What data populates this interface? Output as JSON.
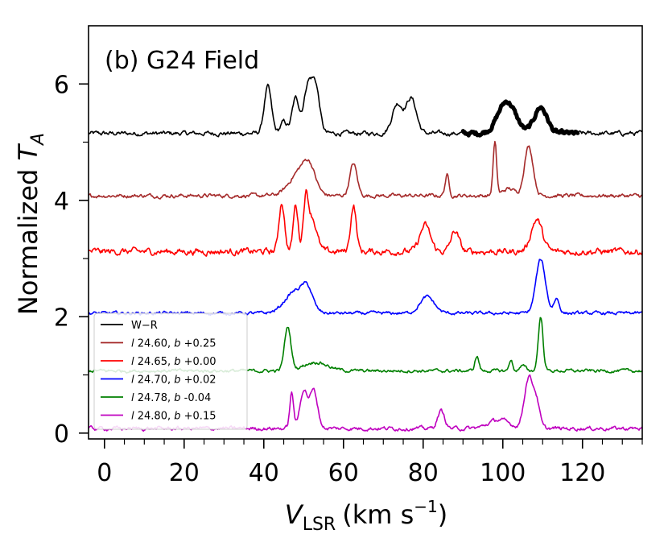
{
  "chart_data": {
    "type": "line",
    "title": "(b) G24 Field",
    "xlabel": {
      "main": "V",
      "sub": "LSR",
      "unit": "(km s",
      "exp": "−1",
      "close": ")"
    },
    "ylabel": {
      "main": "Normalized ",
      "sym": "T",
      "sub": "A"
    },
    "xlim": [
      -4,
      135
    ],
    "ylim": [
      -0.1,
      7.0
    ],
    "xticks": [
      0,
      20,
      40,
      60,
      80,
      100,
      120
    ],
    "xtick_labels": [
      "0",
      "20",
      "40",
      "60",
      "80",
      "100",
      "120"
    ],
    "yticks": [
      0,
      2,
      4,
      6
    ],
    "ytick_labels": [
      "0",
      "2",
      "4",
      "6"
    ],
    "legend_position": "lower-left",
    "series": [
      {
        "name": "W−R",
        "legend_label": {
          "l": "",
          "lv": "W−R",
          "b": "",
          "bv": ""
        },
        "color": "#000000",
        "baseline": 5.15,
        "peaks": [
          [
            41,
            0.8,
            0.9
          ],
          [
            45,
            0.2,
            0.8
          ],
          [
            48,
            0.6,
            0.9
          ],
          [
            51,
            0.78,
            1.0
          ],
          [
            53,
            0.8,
            1.0
          ],
          [
            73.5,
            0.5,
            1.3
          ],
          [
            77,
            0.6,
            1.3
          ],
          [
            101,
            0.55,
            2.2
          ],
          [
            109.5,
            0.45,
            1.6
          ]
        ],
        "noise": 0.035,
        "bold_range": [
          90,
          119
        ]
      },
      {
        "name": "l 24.60, b +0.25",
        "legend_label": {
          "l": "l",
          "lv": " 24.60, ",
          "b": "b",
          "bv": " +0.25"
        },
        "color": "#a52a2a",
        "baseline": 4.08,
        "peaks": [
          [
            49,
            0.4,
            2.5
          ],
          [
            51.5,
            0.35,
            1.5
          ],
          [
            62.5,
            0.55,
            0.9
          ],
          [
            86,
            0.35,
            0.5
          ],
          [
            98,
            0.9,
            0.45
          ],
          [
            101.5,
            0.12,
            1.5
          ],
          [
            106.5,
            0.85,
            1.1
          ]
        ],
        "noise": 0.03
      },
      {
        "name": "l 24.65, b +0.00",
        "legend_label": {
          "l": "l",
          "lv": " 24.65, ",
          "b": "b",
          "bv": " +0.00"
        },
        "color": "#ff0000",
        "baseline": 3.12,
        "peaks": [
          [
            44.5,
            0.85,
            0.7
          ],
          [
            48,
            0.8,
            0.6
          ],
          [
            50.5,
            0.75,
            0.6
          ],
          [
            52,
            0.6,
            1.2
          ],
          [
            62.5,
            0.8,
            0.7
          ],
          [
            80.5,
            0.45,
            1.3
          ],
          [
            88,
            0.35,
            1.0
          ],
          [
            108.5,
            0.55,
            1.4
          ]
        ],
        "noise": 0.05
      },
      {
        "name": "l 24.70, b +0.02",
        "legend_label": {
          "l": "l",
          "lv": " 24.70, ",
          "b": "b",
          "bv": " +0.02"
        },
        "color": "#0000ff",
        "baseline": 2.06,
        "peaks": [
          [
            48,
            0.38,
            2.6
          ],
          [
            51,
            0.3,
            1.3
          ],
          [
            81,
            0.28,
            1.8
          ],
          [
            109.5,
            0.92,
            1.2
          ],
          [
            113.5,
            0.25,
            0.7
          ]
        ],
        "noise": 0.025
      },
      {
        "name": "l 24.78, b -0.04",
        "legend_label": {
          "l": "l",
          "lv": " 24.78, ",
          "b": "b",
          "bv": " -0.04"
        },
        "color": "#008000",
        "baseline": 1.07,
        "peaks": [
          [
            46,
            0.75,
            0.8
          ],
          [
            53,
            0.15,
            3.0
          ],
          [
            93.5,
            0.25,
            0.5
          ],
          [
            102,
            0.2,
            0.4
          ],
          [
            105,
            0.08,
            0.8
          ],
          [
            109.5,
            0.92,
            0.6
          ]
        ],
        "noise": 0.025
      },
      {
        "name": "l 24.80, b +0.15",
        "legend_label": {
          "l": "l",
          "lv": " 24.80, ",
          "b": "b",
          "bv": " +0.15"
        },
        "color": "#bf00bf",
        "baseline": 0.08,
        "peaks": [
          [
            47,
            0.6,
            0.5
          ],
          [
            50,
            0.65,
            0.9
          ],
          [
            52.5,
            0.65,
            1.0
          ],
          [
            84.5,
            0.3,
            0.9
          ],
          [
            99,
            0.15,
            2.5
          ],
          [
            106.5,
            0.88,
            1.1
          ],
          [
            108.5,
            0.4,
            0.8
          ]
        ],
        "noise": 0.03
      }
    ]
  }
}
